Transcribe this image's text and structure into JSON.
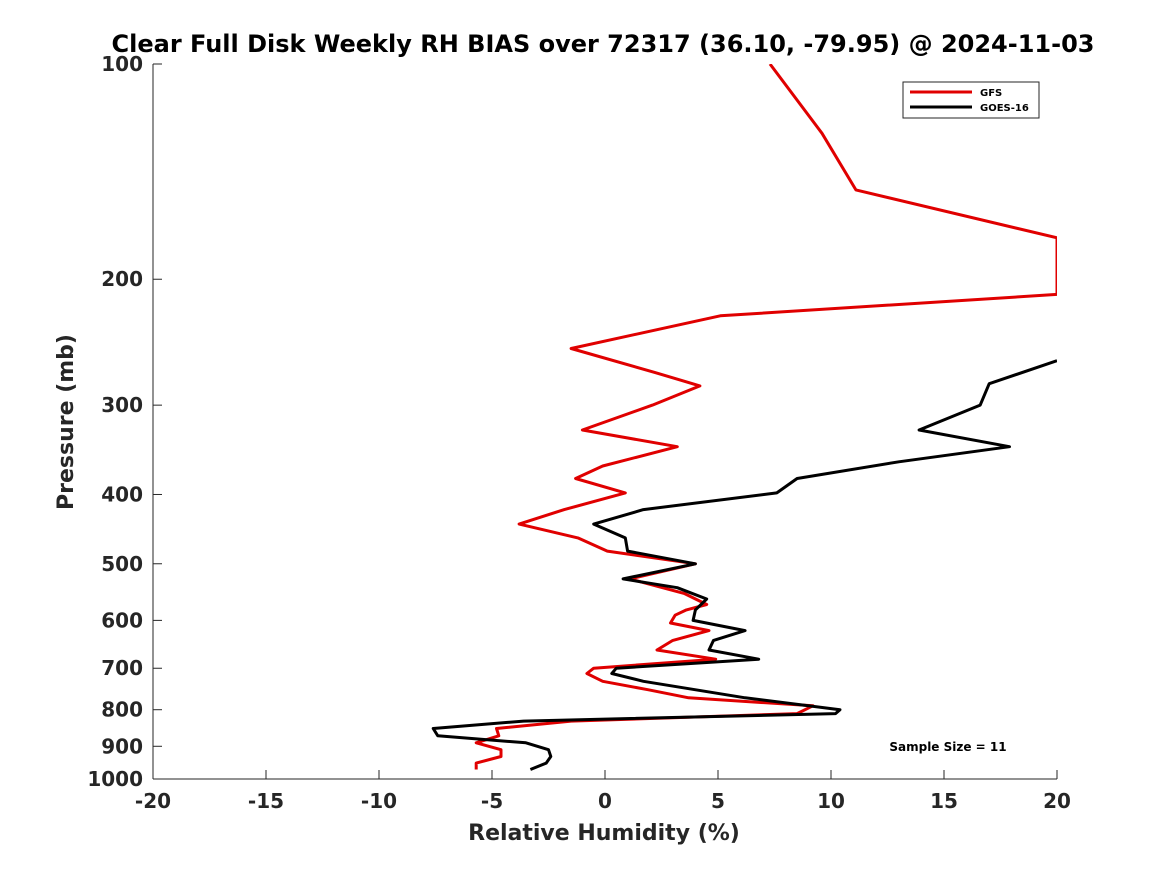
{
  "chart_data": {
    "type": "line",
    "title": "Clear Full Disk Weekly RH BIAS over 72317 (36.10, -79.95) @ 2024-11-03",
    "xlabel": "Relative Humidity (%)",
    "ylabel": "Pressure (mb)",
    "xlim": [
      -20,
      20
    ],
    "ylim": [
      1000,
      100
    ],
    "y_scale": "log",
    "x_ticks": [
      "-20",
      "-15",
      "-10",
      "-5",
      "0",
      "5",
      "10",
      "15",
      "20"
    ],
    "y_ticks": [
      "100",
      "200",
      "300",
      "400",
      "500",
      "600",
      "700",
      "800",
      "900",
      "1000"
    ],
    "grid": false,
    "legend_position": "top-right",
    "series": [
      {
        "name": "GFS",
        "color": "#e00000",
        "points": [
          [
            7.3,
            100
          ],
          [
            9.6,
            125
          ],
          [
            11.1,
            150
          ],
          [
            20.0,
            175
          ],
          [
            20.0,
            210
          ],
          [
            5.1,
            225
          ],
          [
            -1.5,
            250
          ],
          [
            2.2,
            270
          ],
          [
            4.2,
            282
          ],
          [
            2.1,
            300
          ],
          [
            -1.0,
            325
          ],
          [
            3.2,
            343
          ],
          [
            -0.1,
            365
          ],
          [
            -1.3,
            380
          ],
          [
            0.9,
            398
          ],
          [
            -1.8,
            420
          ],
          [
            -3.8,
            440
          ],
          [
            -1.2,
            460
          ],
          [
            0.1,
            480
          ],
          [
            4.0,
            500
          ],
          [
            1.1,
            525
          ],
          [
            3.5,
            550
          ],
          [
            4.5,
            570
          ],
          [
            3.6,
            580
          ],
          [
            3.1,
            590
          ],
          [
            2.9,
            605
          ],
          [
            4.6,
            620
          ],
          [
            3.0,
            640
          ],
          [
            2.3,
            660
          ],
          [
            4.9,
            680
          ],
          [
            -0.5,
            700
          ],
          [
            -0.8,
            712
          ],
          [
            -0.1,
            730
          ],
          [
            1.9,
            750
          ],
          [
            3.7,
            770
          ],
          [
            9.2,
            790
          ],
          [
            8.5,
            810
          ],
          [
            -1.5,
            830
          ],
          [
            -4.8,
            850
          ],
          [
            -4.7,
            870
          ],
          [
            -5.7,
            890
          ],
          [
            -4.6,
            910
          ],
          [
            -4.6,
            930
          ],
          [
            -5.7,
            950
          ],
          [
            -5.7,
            970
          ]
        ]
      },
      {
        "name": "GOES-16",
        "color": "#000000",
        "points": [
          [
            20.0,
            260
          ],
          [
            17.0,
            280
          ],
          [
            16.6,
            300
          ],
          [
            13.9,
            325
          ],
          [
            17.9,
            343
          ],
          [
            13.0,
            360
          ],
          [
            8.5,
            380
          ],
          [
            7.6,
            398
          ],
          [
            1.7,
            420
          ],
          [
            -0.5,
            440
          ],
          [
            0.9,
            460
          ],
          [
            1.0,
            480
          ],
          [
            4.0,
            500
          ],
          [
            0.8,
            525
          ],
          [
            3.2,
            540
          ],
          [
            4.5,
            560
          ],
          [
            4.0,
            580
          ],
          [
            3.9,
            600
          ],
          [
            6.2,
            620
          ],
          [
            4.8,
            640
          ],
          [
            4.6,
            660
          ],
          [
            6.8,
            680
          ],
          [
            0.5,
            700
          ],
          [
            0.3,
            712
          ],
          [
            1.7,
            730
          ],
          [
            6.2,
            770
          ],
          [
            10.4,
            800
          ],
          [
            10.2,
            810
          ],
          [
            -3.6,
            830
          ],
          [
            -7.6,
            850
          ],
          [
            -7.4,
            870
          ],
          [
            -3.5,
            890
          ],
          [
            -2.5,
            910
          ],
          [
            -2.4,
            930
          ],
          [
            -2.6,
            950
          ],
          [
            -3.3,
            970
          ]
        ]
      }
    ],
    "annotation": "Sample Size = 11"
  }
}
